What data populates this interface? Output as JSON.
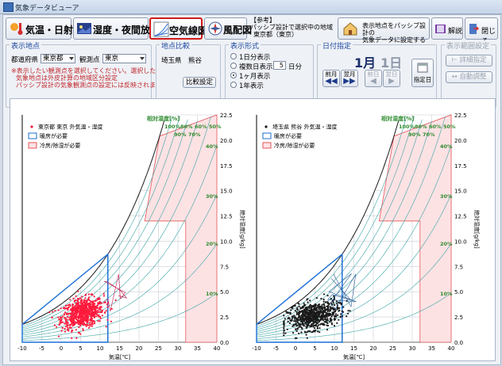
{
  "window": {
    "title": "気象データビューア"
  },
  "toolbar": {
    "tabs": [
      {
        "label": "気温・日射量",
        "icon": "thermometer-sun-icon"
      },
      {
        "label": "湿度・夜間放射",
        "icon": "humidity-icon"
      },
      {
        "label": "空気線図",
        "icon": "psychrometric-icon"
      },
      {
        "label": "風配図",
        "icon": "wind-rose-icon"
      }
    ],
    "active_tab": "空気線図",
    "ref_title": "【参考】",
    "ref_line1": "パッシブ設計で選択中の地域",
    "ref_line2": "東京都（東京）",
    "set_passive_line1": "表示地点をパッシブ設計の",
    "set_passive_line2": "気象データに設定する",
    "help_label": "解説",
    "close_label": "閉じる"
  },
  "location": {
    "group_title": "表示地点",
    "pref_label": "都道府県",
    "pref_value": "東京都",
    "station_label": "観測点",
    "station_value": "東京",
    "note1": "※表示したい観測点を選択してください。選択した",
    "note2": "気象地点は外皮計算の地域区分設定",
    "note3": "パッシブ設計の気象観測点の設定には反映されま"
  },
  "compare": {
    "group_title": "地点比較",
    "location": "埼玉県　熊谷",
    "button": "比較設定"
  },
  "display": {
    "group_title": "表示形式",
    "opt1": "1日分表示",
    "opt2": "複数日表示",
    "opt2_days": "5",
    "opt2_unit": "日分",
    "opt3": "1ヶ月表示",
    "opt4": "1年表示",
    "selected": "1ヶ月表示"
  },
  "date": {
    "group_title": "日付指定",
    "month": "1月",
    "day": "1日",
    "prev_month": "前月",
    "next_month": "翌月",
    "prev_day": "前日",
    "next_day": "翌日",
    "pick_date": "指定日"
  },
  "range": {
    "group_title": "表示範囲設定",
    "detail": "詳細指定",
    "auto": "自動調整"
  },
  "colors": {
    "left_series": "#ff1a3c",
    "right_series": "#1a1a1a",
    "heating_zone": "#1a6fd6",
    "cooling_zone": "#e5555a",
    "rh_label": "#2e8b2e"
  },
  "chart_data": [
    {
      "type": "scatter",
      "chart": "psychrometric",
      "legend": [
        "東京都 東京 外気温・湿度",
        "暖房が必要",
        "冷房/除湿が必要"
      ],
      "series_color": "#ff1a3c",
      "rh_title": "相対湿度[%]",
      "rh_labels": [
        "100%",
        "80%",
        "60%",
        "50%",
        "90%",
        "70%",
        "40%",
        "30%",
        "20%",
        "10%"
      ],
      "xlabel": "気温[℃]",
      "ylabel": "絶対湿度[g/kg]",
      "xlim": [
        -10,
        40
      ],
      "ylim": [
        0,
        22.5
      ],
      "x_ticks": [
        "-10",
        "-5",
        "0",
        "5",
        "10",
        "15",
        "20",
        "25",
        "30",
        "35",
        "40"
      ],
      "y_ticks": [
        "0.0",
        "2.5",
        "5.0",
        "7.5",
        "10.0",
        "12.5",
        "15.0",
        "17.5",
        "20.0",
        "22.5"
      ],
      "cluster": {
        "x_mean": 5.5,
        "x_spread": 4.5,
        "y_mean": 2.9,
        "y_spread": 1.2,
        "n_points": 744
      }
    },
    {
      "type": "scatter",
      "chart": "psychrometric",
      "legend": [
        "埼玉県 熊谷 外気温・湿度",
        "暖房が必要",
        "冷房/除湿が必要"
      ],
      "series_color": "#1a1a1a",
      "rh_title": "相対湿度[%]",
      "rh_labels": [
        "100%",
        "80%",
        "60%",
        "50%",
        "90%",
        "70%",
        "40%",
        "30%",
        "20%",
        "10%"
      ],
      "xlabel": "気温[℃]",
      "ylabel": "絶対湿度[g/kg]",
      "xlim": [
        -10,
        40
      ],
      "ylim": [
        0,
        22.5
      ],
      "x_ticks": [
        "-10",
        "-5",
        "0",
        "5",
        "10",
        "15",
        "20",
        "25",
        "30",
        "35",
        "40"
      ],
      "y_ticks": [
        "0.0",
        "2.5",
        "5.0",
        "7.5",
        "10.0",
        "12.5",
        "15.0",
        "17.5",
        "20.0",
        "22.5"
      ],
      "cluster": {
        "x_mean": 4.5,
        "x_spread": 5.5,
        "y_mean": 2.6,
        "y_spread": 1.1,
        "n_points": 744
      }
    }
  ]
}
